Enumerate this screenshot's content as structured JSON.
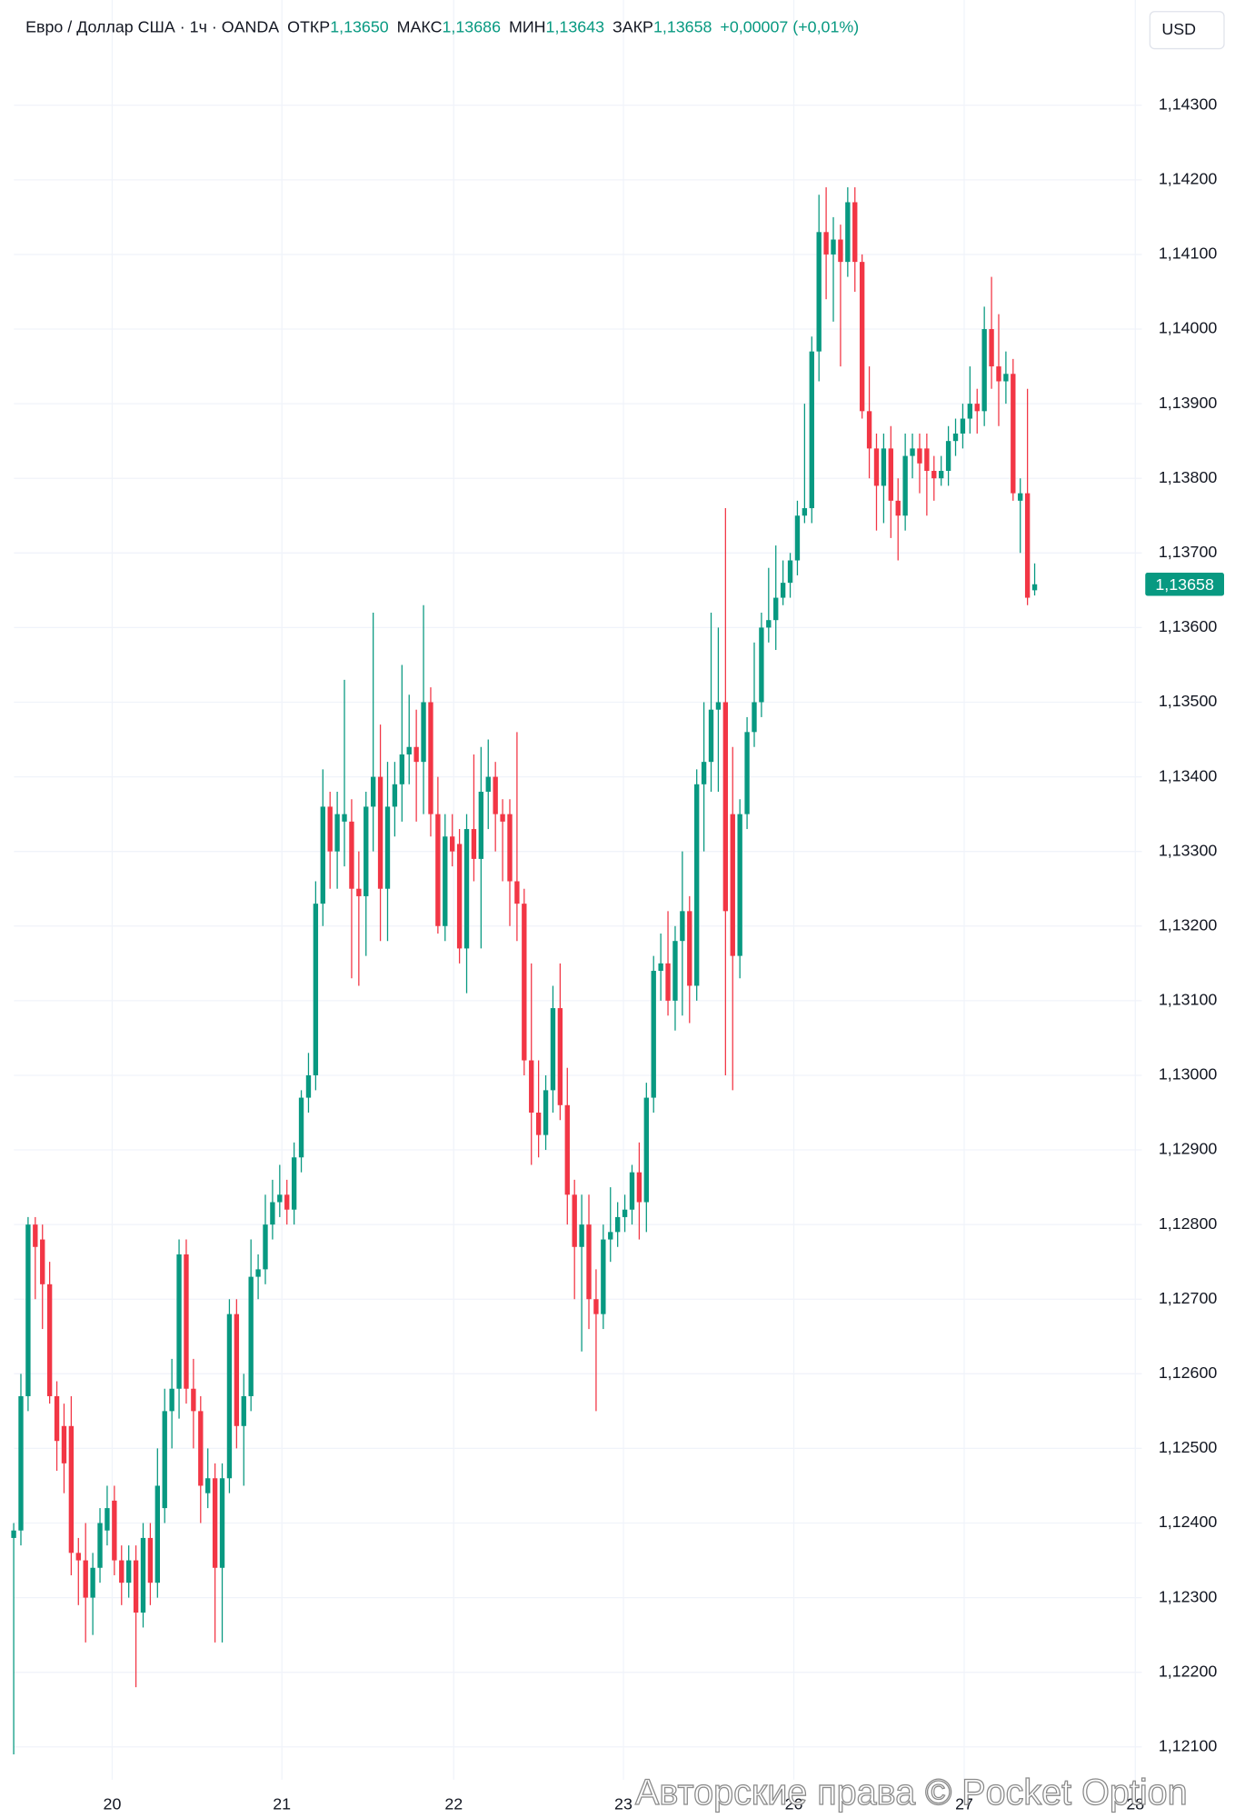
{
  "chart_data": {
    "type": "candlestick",
    "title": "Евро / Доллар США · 1ч · OANDA",
    "header_stats": [
      {
        "name": "ОТКР",
        "value": 1.1365,
        "value_label": "1,13650"
      },
      {
        "name": "МАКС",
        "value": 1.13686,
        "value_label": "1,13686"
      },
      {
        "name": "МИН",
        "value": 1.13643,
        "value_label": "1,13643"
      },
      {
        "name": "ЗАКР",
        "value": 1.13658,
        "value_label": "1,13658"
      }
    ],
    "change": {
      "value": 7e-05,
      "value_label": "+0,00007 (+0,01%)"
    },
    "currency": "USD",
    "watermark": "Авторские права © Pocket Option",
    "last_price": {
      "value": 1.13658,
      "label": "1,13658"
    },
    "up_color": "#089981",
    "down_color": "#f23645",
    "grid": true,
    "xlim": [
      -1.9,
      156.9
    ],
    "xticks": [
      {
        "value": 13.7,
        "label": "20"
      },
      {
        "value": 37.3,
        "label": "21"
      },
      {
        "value": 61.2,
        "label": "22"
      },
      {
        "value": 84.8,
        "label": "23"
      },
      {
        "value": 108.5,
        "label": "26"
      },
      {
        "value": 132.2,
        "label": "27"
      },
      {
        "value": 156,
        "label": "28"
      }
    ],
    "ylim": [
      1.12056,
      1.14441
    ],
    "yticks": [
      {
        "value": 1.121,
        "label": "1,12100"
      },
      {
        "value": 1.122,
        "label": "1,12200"
      },
      {
        "value": 1.123,
        "label": "1,12300"
      },
      {
        "value": 1.124,
        "label": "1,12400"
      },
      {
        "value": 1.125,
        "label": "1,12500"
      },
      {
        "value": 1.126,
        "label": "1,12600"
      },
      {
        "value": 1.127,
        "label": "1,12700"
      },
      {
        "value": 1.128,
        "label": "1,12800"
      },
      {
        "value": 1.129,
        "label": "1,12900"
      },
      {
        "value": 1.13,
        "label": "1,13000"
      },
      {
        "value": 1.131,
        "label": "1,13100"
      },
      {
        "value": 1.132,
        "label": "1,13200"
      },
      {
        "value": 1.133,
        "label": "1,13300"
      },
      {
        "value": 1.134,
        "label": "1,13400"
      },
      {
        "value": 1.135,
        "label": "1,13500"
      },
      {
        "value": 1.136,
        "label": "1,13600"
      },
      {
        "value": 1.137,
        "label": "1,13700"
      },
      {
        "value": 1.138,
        "label": "1,13800"
      },
      {
        "value": 1.139,
        "label": "1,13900"
      },
      {
        "value": 1.14,
        "label": "1,14000"
      },
      {
        "value": 1.141,
        "label": "1,14100"
      },
      {
        "value": 1.142,
        "label": "1,14200"
      },
      {
        "value": 1.143,
        "label": "1,14300"
      }
    ],
    "open": [
      1.1238,
      1.1239,
      1.1257,
      1.128,
      1.1278,
      1.1272,
      1.1257,
      1.1253,
      1.1253,
      1.1236,
      1.1235,
      1.123,
      1.1234,
      1.1239,
      1.1243,
      1.1235,
      1.1232,
      1.1235,
      1.1228,
      1.1238,
      1.1232,
      1.1242,
      1.1255,
      1.1258,
      1.1276,
      1.1258,
      1.1255,
      1.1244,
      1.1246,
      1.1234,
      1.1246,
      1.1268,
      1.1253,
      1.1257,
      1.1273,
      1.1274,
      1.128,
      1.1283,
      1.1284,
      1.1282,
      1.1289,
      1.1297,
      1.13,
      1.1323,
      1.1336,
      1.133,
      1.1334,
      1.1334,
      1.1325,
      1.1324,
      1.1336,
      1.134,
      1.1325,
      1.1336,
      1.1339,
      1.1343,
      1.1344,
      1.1342,
      1.135,
      1.1335,
      1.132,
      1.1332,
      1.1331,
      1.1317,
      1.1333,
      1.1329,
      1.1338,
      1.134,
      1.1335,
      1.1335,
      1.1326,
      1.1323,
      1.1302,
      1.1295,
      1.1292,
      1.1298,
      1.1309,
      1.1296,
      1.1284,
      1.1277,
      1.128,
      1.127,
      1.1268,
      1.1278,
      1.1279,
      1.1281,
      1.1282,
      1.1287,
      1.1283,
      1.1297,
      1.1314,
      1.1315,
      1.131,
      1.1318,
      1.1322,
      1.1312,
      1.1339,
      1.1342,
      1.1349,
      1.135,
      1.1335,
      1.1316,
      1.1335,
      1.1346,
      1.135,
      1.136,
      1.1361,
      1.1364,
      1.1366,
      1.1369,
      1.1375,
      1.1376,
      1.1397,
      1.1413,
      1.141,
      1.1412,
      1.1409,
      1.1417,
      1.1409,
      1.1389,
      1.1384,
      1.1379,
      1.1384,
      1.1377,
      1.1375,
      1.1383,
      1.1384,
      1.1384,
      1.1381,
      1.138,
      1.1381,
      1.1385,
      1.1386,
      1.1388,
      1.139,
      1.1389,
      1.14,
      1.1395,
      1.1393,
      1.1394,
      1.1377,
      1.1378,
      1.1365
    ],
    "high": [
      1.124,
      1.126,
      1.1281,
      1.1281,
      1.128,
      1.1275,
      1.1259,
      1.1256,
      1.1257,
      1.1238,
      1.124,
      1.1236,
      1.1242,
      1.1245,
      1.1245,
      1.1237,
      1.1237,
      1.1237,
      1.124,
      1.124,
      1.125,
      1.1258,
      1.1262,
      1.1278,
      1.1278,
      1.1262,
      1.1257,
      1.125,
      1.1248,
      1.1248,
      1.127,
      1.127,
      1.126,
      1.1278,
      1.1276,
      1.1284,
      1.1286,
      1.1288,
      1.1286,
      1.1291,
      1.1298,
      1.1303,
      1.1326,
      1.1341,
      1.1338,
      1.1338,
      1.1353,
      1.1337,
      1.133,
      1.1338,
      1.1362,
      1.1347,
      1.1342,
      1.1342,
      1.1355,
      1.1351,
      1.1349,
      1.1363,
      1.1352,
      1.134,
      1.1335,
      1.1335,
      1.1333,
      1.1335,
      1.1343,
      1.1344,
      1.1345,
      1.1342,
      1.1337,
      1.1337,
      1.1346,
      1.1325,
      1.1315,
      1.1302,
      1.13,
      1.1312,
      1.1315,
      1.1301,
      1.1286,
      1.1284,
      1.1284,
      1.1274,
      1.128,
      1.1285,
      1.1283,
      1.1284,
      1.1288,
      1.1291,
      1.1299,
      1.1316,
      1.1319,
      1.1322,
      1.132,
      1.133,
      1.1324,
      1.1341,
      1.135,
      1.1362,
      1.136,
      1.1376,
      1.1344,
      1.1337,
      1.1348,
      1.1358,
      1.1362,
      1.1368,
      1.1371,
      1.1369,
      1.137,
      1.1377,
      1.139,
      1.1399,
      1.1418,
      1.1419,
      1.1415,
      1.1414,
      1.1419,
      1.1419,
      1.141,
      1.1395,
      1.1386,
      1.1386,
      1.1387,
      1.138,
      1.1386,
      1.1386,
      1.1386,
      1.1386,
      1.1383,
      1.1383,
      1.1387,
      1.1388,
      1.139,
      1.1395,
      1.1392,
      1.1403,
      1.1407,
      1.1402,
      1.1397,
      1.1396,
      1.138,
      1.1392,
      1.13686
    ],
    "low": [
      1.1209,
      1.1237,
      1.1255,
      1.127,
      1.1266,
      1.1256,
      1.1247,
      1.1244,
      1.1233,
      1.1229,
      1.1224,
      1.1225,
      1.1232,
      1.1237,
      1.1233,
      1.1229,
      1.123,
      1.1218,
      1.1226,
      1.1229,
      1.123,
      1.124,
      1.125,
      1.1254,
      1.1256,
      1.125,
      1.124,
      1.1242,
      1.1224,
      1.1224,
      1.1244,
      1.125,
      1.1245,
      1.1255,
      1.127,
      1.1272,
      1.1278,
      1.1281,
      1.128,
      1.128,
      1.1287,
      1.1295,
      1.1298,
      1.132,
      1.1325,
      1.1325,
      1.1328,
      1.1313,
      1.1312,
      1.1316,
      1.133,
      1.1318,
      1.1318,
      1.1332,
      1.1334,
      1.1339,
      1.1334,
      1.1335,
      1.1332,
      1.1319,
      1.1318,
      1.1328,
      1.1315,
      1.1311,
      1.1326,
      1.1317,
      1.1333,
      1.133,
      1.1326,
      1.132,
      1.1318,
      1.13,
      1.1288,
      1.1289,
      1.129,
      1.1295,
      1.1294,
      1.128,
      1.127,
      1.1263,
      1.1266,
      1.1255,
      1.1266,
      1.1275,
      1.1277,
      1.1279,
      1.128,
      1.1278,
      1.1279,
      1.1295,
      1.131,
      1.1308,
      1.1306,
      1.1308,
      1.1307,
      1.131,
      1.133,
      1.1338,
      1.1338,
      1.13,
      1.1298,
      1.1313,
      1.1333,
      1.1344,
      1.1348,
      1.1358,
      1.1357,
      1.1363,
      1.1364,
      1.1367,
      1.1374,
      1.1374,
      1.1393,
      1.1404,
      1.1401,
      1.1395,
      1.1407,
      1.1405,
      1.1388,
      1.138,
      1.1373,
      1.1374,
      1.1372,
      1.1369,
      1.1373,
      1.138,
      1.1378,
      1.1375,
      1.1377,
      1.1379,
      1.1379,
      1.1383,
      1.1384,
      1.1386,
      1.1386,
      1.1387,
      1.1392,
      1.1387,
      1.139,
      1.1377,
      1.137,
      1.1363,
      1.13643
    ],
    "close": [
      1.1239,
      1.1257,
      1.128,
      1.1277,
      1.1272,
      1.1257,
      1.1251,
      1.1248,
      1.1236,
      1.1235,
      1.123,
      1.1234,
      1.124,
      1.1242,
      1.1235,
      1.1232,
      1.1235,
      1.1228,
      1.1238,
      1.1232,
      1.1245,
      1.1255,
      1.1258,
      1.1276,
      1.1258,
      1.1255,
      1.1245,
      1.1246,
      1.1234,
      1.1246,
      1.1268,
      1.1253,
      1.1257,
      1.1273,
      1.1274,
      1.128,
      1.1283,
      1.1284,
      1.1282,
      1.1289,
      1.1297,
      1.13,
      1.1323,
      1.1336,
      1.133,
      1.1335,
      1.1335,
      1.1325,
      1.1324,
      1.1336,
      1.134,
      1.1325,
      1.1336,
      1.1339,
      1.1343,
      1.1344,
      1.1342,
      1.135,
      1.1335,
      1.132,
      1.1332,
      1.133,
      1.1317,
      1.1333,
      1.1329,
      1.1338,
      1.134,
      1.1335,
      1.1334,
      1.1326,
      1.1323,
      1.1302,
      1.1295,
      1.1292,
      1.1298,
      1.1309,
      1.1296,
      1.1284,
      1.1277,
      1.128,
      1.127,
      1.1268,
      1.1278,
      1.1279,
      1.1281,
      1.1282,
      1.1287,
      1.1283,
      1.1297,
      1.1314,
      1.1315,
      1.131,
      1.1318,
      1.1322,
      1.1312,
      1.1339,
      1.1342,
      1.1349,
      1.135,
      1.1322,
      1.1316,
      1.1335,
      1.1346,
      1.135,
      1.136,
      1.1361,
      1.1364,
      1.1366,
      1.1369,
      1.1375,
      1.1376,
      1.1397,
      1.1413,
      1.141,
      1.1412,
      1.1409,
      1.1417,
      1.1409,
      1.1389,
      1.1384,
      1.1379,
      1.1384,
      1.1377,
      1.1375,
      1.1383,
      1.1384,
      1.1382,
      1.1381,
      1.138,
      1.1381,
      1.1385,
      1.1386,
      1.1388,
      1.139,
      1.1389,
      1.14,
      1.1395,
      1.1393,
      1.1394,
      1.1378,
      1.1378,
      1.1364,
      1.13658
    ]
  }
}
